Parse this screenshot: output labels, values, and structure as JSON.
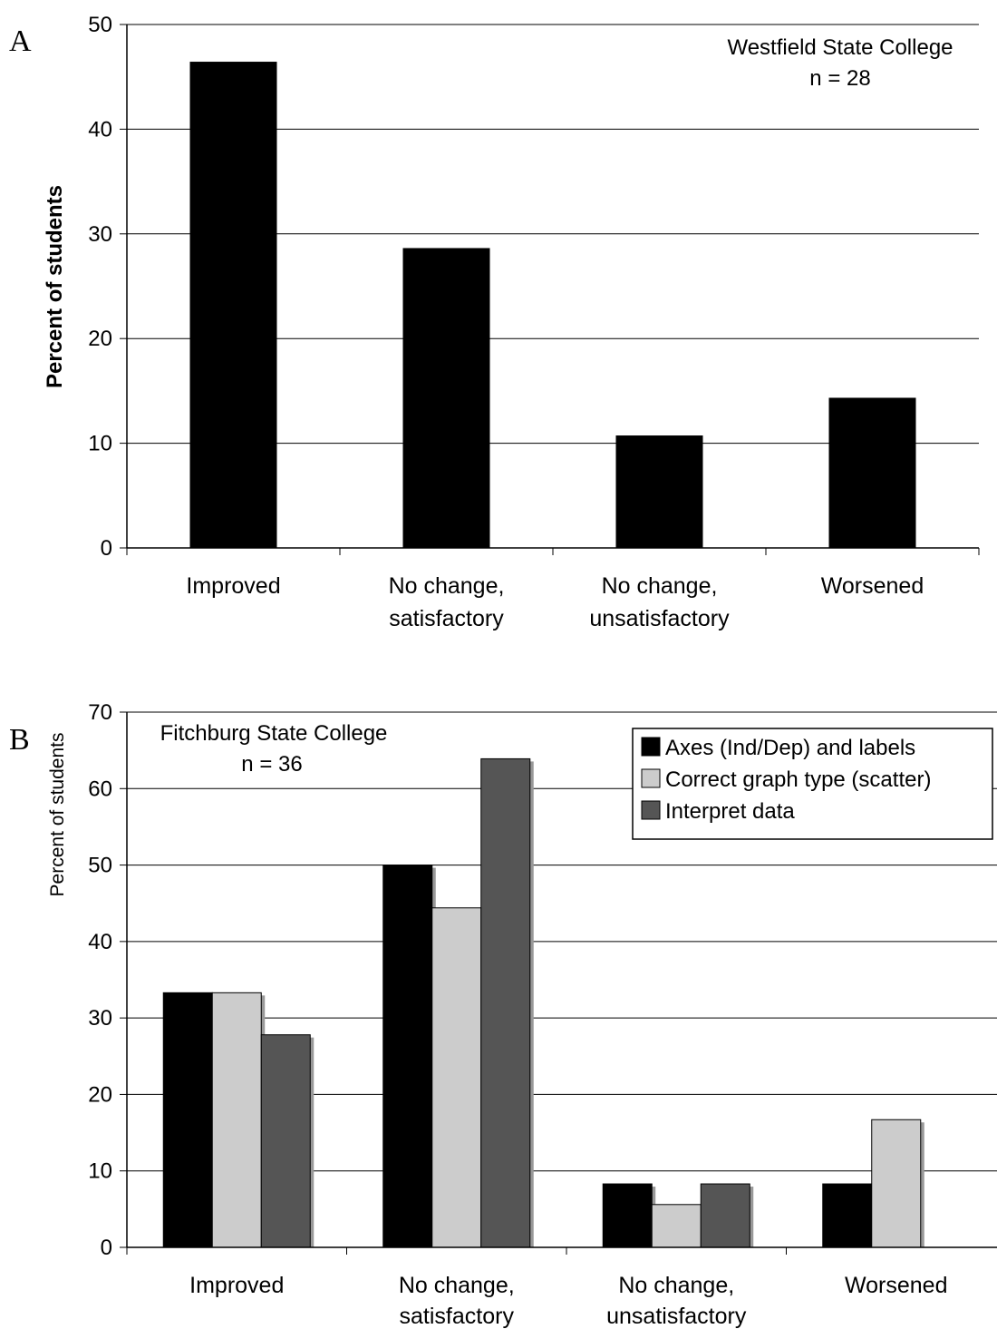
{
  "chart_data": [
    {
      "type": "bar",
      "panel_label": "A",
      "annotation": [
        "Westfield State College",
        "n = 28"
      ],
      "ylabel": "Percent of students",
      "ylim": [
        0,
        50
      ],
      "yticks": [
        0,
        10,
        20,
        30,
        40,
        50
      ],
      "grid": true,
      "categories": [
        [
          "Improved"
        ],
        [
          "No change,",
          "satisfactory"
        ],
        [
          "No change,",
          "unsatisfactory"
        ],
        [
          "Worsened"
        ]
      ],
      "series": [
        {
          "values": [
            46.4,
            28.6,
            10.7,
            14.3
          ]
        }
      ],
      "colors": [
        "#000000"
      ]
    },
    {
      "type": "bar",
      "panel_label": "B",
      "annotation": [
        "Fitchburg State College",
        "n = 36"
      ],
      "ylabel": "Percent of students",
      "ylim": [
        0,
        70
      ],
      "yticks": [
        0,
        10,
        20,
        30,
        40,
        50,
        60,
        70
      ],
      "grid": true,
      "legend_position": "top-right",
      "categories": [
        [
          "Improved"
        ],
        [
          "No change,",
          "satisfactory"
        ],
        [
          "No change,",
          "unsatisfactory"
        ],
        [
          "Worsened"
        ]
      ],
      "series": [
        {
          "name": "Axes (Ind/Dep) and labels",
          "values": [
            33.3,
            50.0,
            8.3,
            8.3
          ]
        },
        {
          "name": "Correct graph type (scatter)",
          "values": [
            33.3,
            44.4,
            5.6,
            16.7
          ]
        },
        {
          "name": "Interpret data",
          "values": [
            27.8,
            63.9,
            8.3,
            0
          ]
        }
      ],
      "colors": [
        "#000000",
        "#cccccc",
        "#555555"
      ]
    }
  ]
}
